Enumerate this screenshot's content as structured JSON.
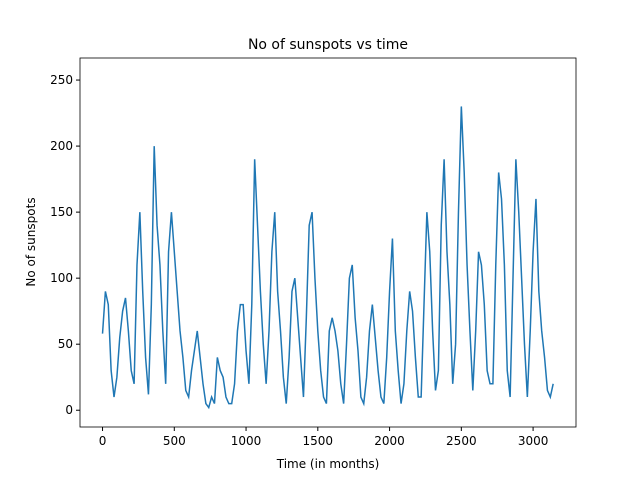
{
  "chart_data": {
    "type": "line",
    "title": "No of sunspots vs time",
    "x_label": "Time (in months)",
    "y_label": "No of sunspots",
    "x": [
      0,
      20,
      40,
      60,
      80,
      100,
      120,
      140,
      160,
      180,
      200,
      220,
      240,
      260,
      280,
      300,
      320,
      340,
      360,
      380,
      400,
      420,
      440,
      460,
      480,
      500,
      520,
      540,
      560,
      580,
      600,
      620,
      640,
      660,
      680,
      700,
      720,
      740,
      760,
      780,
      800,
      820,
      840,
      860,
      880,
      900,
      920,
      940,
      960,
      980,
      1000,
      1020,
      1040,
      1060,
      1080,
      1100,
      1120,
      1140,
      1160,
      1180,
      1200,
      1220,
      1240,
      1260,
      1280,
      1300,
      1320,
      1340,
      1360,
      1380,
      1400,
      1420,
      1440,
      1460,
      1480,
      1500,
      1520,
      1540,
      1560,
      1580,
      1600,
      1620,
      1640,
      1660,
      1680,
      1700,
      1720,
      1740,
      1760,
      1780,
      1800,
      1820,
      1840,
      1860,
      1880,
      1900,
      1920,
      1940,
      1960,
      1980,
      2000,
      2020,
      2040,
      2060,
      2080,
      2100,
      2120,
      2140,
      2160,
      2180,
      2200,
      2220,
      2240,
      2260,
      2280,
      2300,
      2320,
      2340,
      2360,
      2380,
      2400,
      2420,
      2440,
      2460,
      2480,
      2500,
      2520,
      2540,
      2560,
      2580,
      2600,
      2620,
      2640,
      2660,
      2680,
      2700,
      2720,
      2740,
      2760,
      2780,
      2800,
      2820,
      2840,
      2860,
      2880,
      2900,
      2920,
      2940,
      2960,
      2980,
      3000,
      3020,
      3040,
      3060,
      3080,
      3100,
      3120,
      3140
    ],
    "series": [
      {
        "name": "sunspots",
        "color": "#1f77b4",
        "values": [
          58,
          90,
          80,
          30,
          10,
          25,
          55,
          75,
          85,
          60,
          30,
          20,
          110,
          150,
          90,
          40,
          12,
          80,
          200,
          140,
          110,
          60,
          20,
          120,
          150,
          120,
          90,
          60,
          40,
          15,
          10,
          30,
          45,
          60,
          40,
          20,
          5,
          2,
          10,
          5,
          40,
          30,
          25,
          10,
          5,
          5,
          20,
          60,
          80,
          80,
          45,
          20,
          80,
          190,
          140,
          90,
          50,
          20,
          60,
          120,
          150,
          90,
          60,
          25,
          5,
          40,
          90,
          100,
          70,
          40,
          10,
          70,
          140,
          150,
          100,
          60,
          30,
          10,
          5,
          60,
          70,
          60,
          45,
          20,
          5,
          50,
          100,
          110,
          70,
          45,
          10,
          5,
          25,
          60,
          80,
          55,
          30,
          10,
          5,
          40,
          90,
          130,
          60,
          30,
          5,
          20,
          60,
          90,
          75,
          40,
          10,
          10,
          80,
          150,
          120,
          60,
          15,
          30,
          140,
          190,
          120,
          80,
          20,
          50,
          150,
          230,
          180,
          110,
          60,
          15,
          60,
          120,
          110,
          80,
          30,
          20,
          20,
          110,
          180,
          160,
          110,
          30,
          10,
          100,
          190,
          150,
          100,
          50,
          10,
          60,
          120,
          160,
          90,
          60,
          40,
          15,
          10,
          20
        ]
      }
    ],
    "xlim": [
      -157,
      3299
    ],
    "ylim": [
      -12.7,
      266.7
    ],
    "xticks": [
      0,
      500,
      1000,
      1500,
      2000,
      2500,
      3000
    ],
    "yticks": [
      0,
      50,
      100,
      150,
      200,
      250
    ]
  }
}
